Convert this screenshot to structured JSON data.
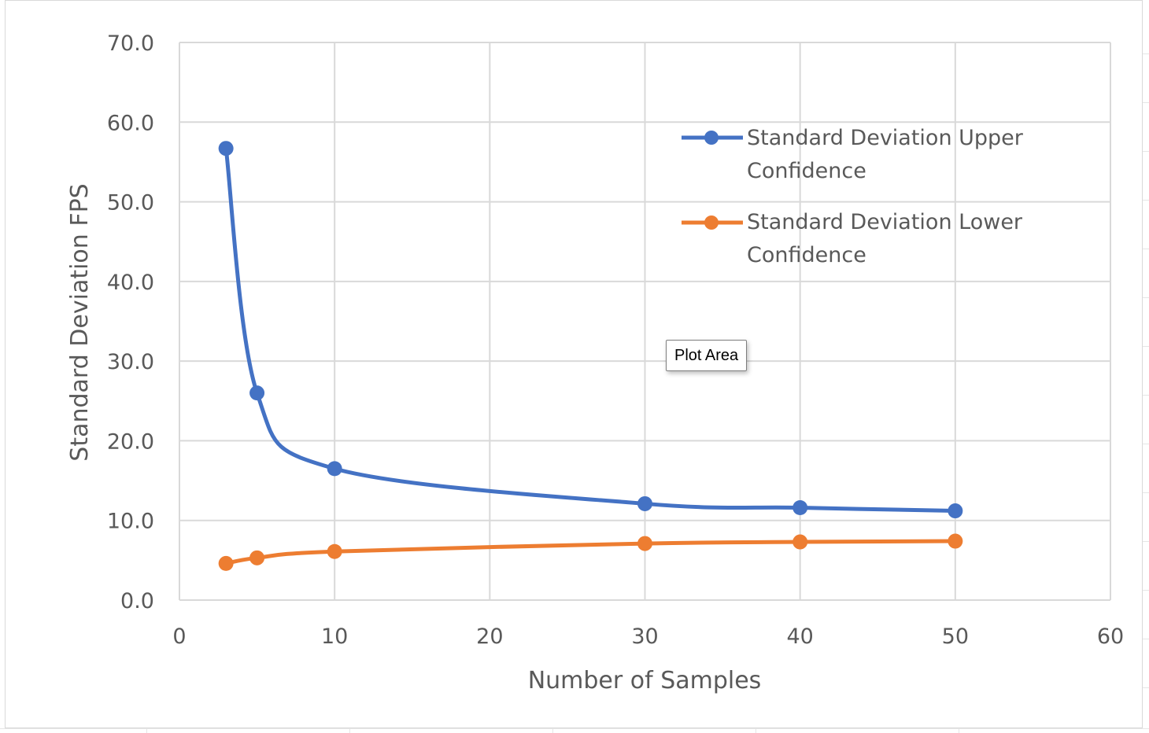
{
  "chart_data": {
    "type": "line",
    "title": "",
    "xlabel": "Number of Samples",
    "ylabel": "Standard Deviation FPS",
    "xlim": [
      0,
      60
    ],
    "ylim": [
      0,
      70
    ],
    "x_ticks": [
      0,
      10,
      20,
      30,
      40,
      50,
      60
    ],
    "y_ticks": [
      0,
      10,
      20,
      30,
      40,
      50,
      60,
      70
    ],
    "x_tick_labels": [
      "0",
      "10",
      "20",
      "30",
      "40",
      "50",
      "60"
    ],
    "y_tick_labels": [
      "0.0",
      "10.0",
      "20.0",
      "30.0",
      "40.0",
      "50.0",
      "60.0",
      "70.0"
    ],
    "grid": true,
    "smooth": true,
    "legend_position": "top-right",
    "series": [
      {
        "name": "Standard Deviation Upper Confidence",
        "name_lines": [
          "Standard Deviation Upper",
          "Confidence"
        ],
        "color": "#4472c4",
        "x": [
          3,
          5,
          10,
          30,
          40,
          50
        ],
        "values": [
          56.7,
          26.0,
          16.5,
          12.1,
          11.6,
          11.2
        ]
      },
      {
        "name": "Standard Deviation Lower Confidence",
        "name_lines": [
          "Standard Deviation Lower",
          "Confidence"
        ],
        "color": "#ed7d31",
        "x": [
          3,
          5,
          10,
          30,
          40,
          50
        ],
        "values": [
          4.6,
          5.3,
          6.1,
          7.1,
          7.3,
          7.4
        ]
      }
    ]
  },
  "tooltip": {
    "text": "Plot Area"
  }
}
